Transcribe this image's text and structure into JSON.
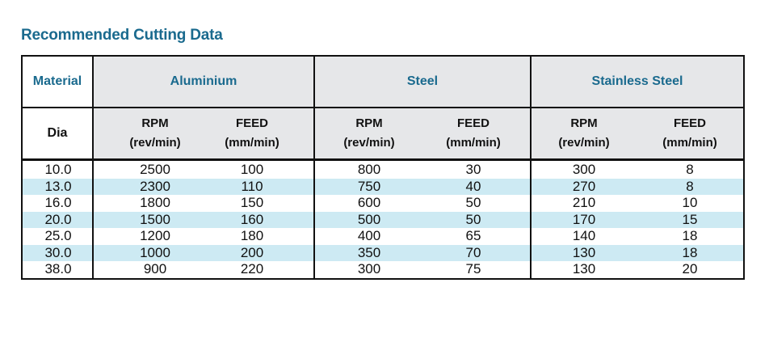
{
  "title": "Recommended Cutting Data",
  "header": {
    "material_label": "Material",
    "dia_label": "Dia",
    "groups": [
      "Aluminium",
      "Steel",
      "Stainless Steel"
    ],
    "rpm_label": "RPM",
    "rpm_unit": "(rev/min)",
    "feed_label": "FEED",
    "feed_unit": "(mm/min)"
  },
  "rows": [
    {
      "dia": "10.0",
      "al_rpm": "2500",
      "al_feed": "100",
      "st_rpm": "800",
      "st_feed": "30",
      "ss_rpm": "300",
      "ss_feed": "8"
    },
    {
      "dia": "13.0",
      "al_rpm": "2300",
      "al_feed": "110",
      "st_rpm": "750",
      "st_feed": "40",
      "ss_rpm": "270",
      "ss_feed": "8"
    },
    {
      "dia": "16.0",
      "al_rpm": "1800",
      "al_feed": "150",
      "st_rpm": "600",
      "st_feed": "50",
      "ss_rpm": "210",
      "ss_feed": "10"
    },
    {
      "dia": "20.0",
      "al_rpm": "1500",
      "al_feed": "160",
      "st_rpm": "500",
      "st_feed": "50",
      "ss_rpm": "170",
      "ss_feed": "15"
    },
    {
      "dia": "25.0",
      "al_rpm": "1200",
      "al_feed": "180",
      "st_rpm": "400",
      "st_feed": "65",
      "ss_rpm": "140",
      "ss_feed": "18"
    },
    {
      "dia": "30.0",
      "al_rpm": "1000",
      "al_feed": "200",
      "st_rpm": "350",
      "st_feed": "70",
      "ss_rpm": "130",
      "ss_feed": "18"
    },
    {
      "dia": "38.0",
      "al_rpm": "900",
      "al_feed": "220",
      "st_rpm": "300",
      "st_feed": "75",
      "ss_rpm": "130",
      "ss_feed": "20"
    }
  ],
  "colors": {
    "heading": "#1a6a8e",
    "header_grey": "#e6e7e9",
    "stripe": "#cdeaf3",
    "border": "#111111"
  }
}
